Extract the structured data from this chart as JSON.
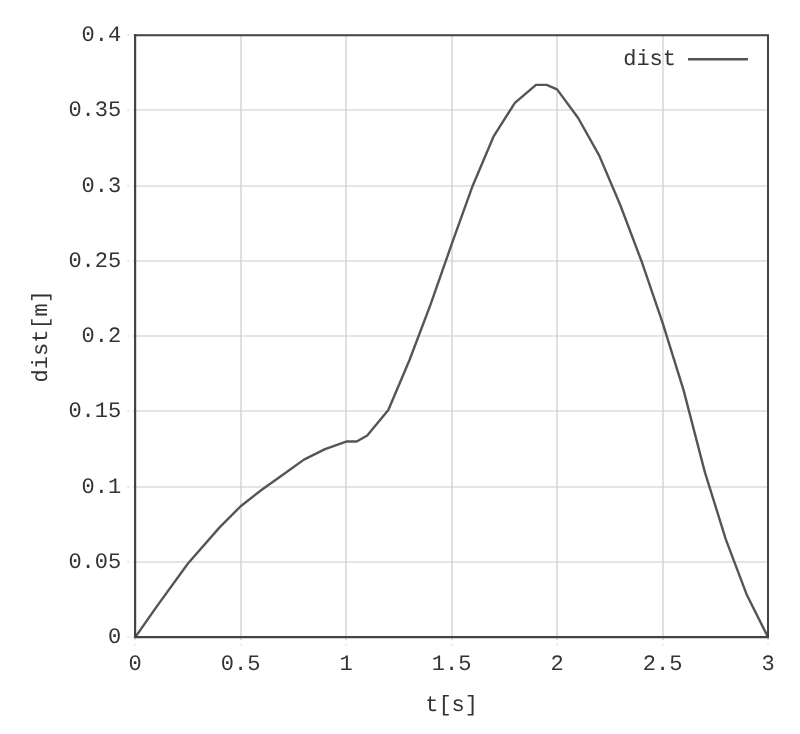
{
  "chart_data": {
    "type": "line",
    "xlabel": "t[s]",
    "ylabel": "dist[m]",
    "series": [
      {
        "name": "dist",
        "color": "#555555",
        "x": [
          0,
          0.1,
          0.25,
          0.4,
          0.5,
          0.6,
          0.7,
          0.8,
          0.9,
          1.0,
          1.05,
          1.1,
          1.2,
          1.3,
          1.4,
          1.5,
          1.6,
          1.7,
          1.8,
          1.9,
          1.95,
          2.0,
          2.1,
          2.2,
          2.3,
          2.4,
          2.5,
          2.6,
          2.7,
          2.8,
          2.9,
          3.0
        ],
        "values": [
          0,
          0.02,
          0.049,
          0.073,
          0.087,
          0.098,
          0.108,
          0.118,
          0.125,
          0.13,
          0.13,
          0.134,
          0.151,
          0.184,
          0.221,
          0.261,
          0.3,
          0.333,
          0.355,
          0.367,
          0.367,
          0.364,
          0.345,
          0.32,
          0.287,
          0.25,
          0.209,
          0.164,
          0.11,
          0.065,
          0.028,
          0
        ]
      }
    ],
    "xlim": [
      0,
      3
    ],
    "xticks": [
      0,
      0.5,
      1,
      1.5,
      2,
      2.5,
      3
    ],
    "ylim": [
      0,
      0.4
    ],
    "yticks": [
      0,
      0.05,
      0.1,
      0.15,
      0.2,
      0.25,
      0.3,
      0.35,
      0.4
    ],
    "grid": true,
    "legend": "top right",
    "marker": "none",
    "line_style": "solid"
  }
}
